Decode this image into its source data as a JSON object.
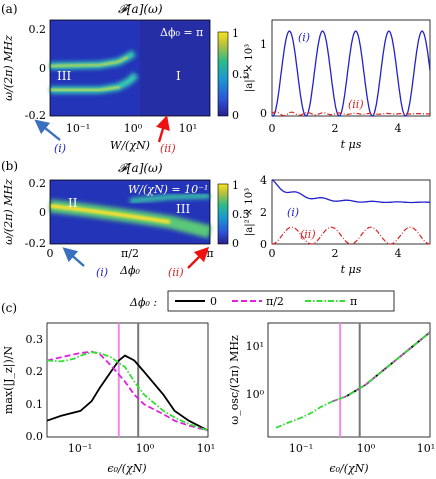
{
  "labels": {
    "a": "(a)",
    "b": "(b)",
    "c": "(c)",
    "transform": "𝓕[a](ω)",
    "dphi_a": "Δϕ₀ = π",
    "w_b": "W/(χN) = 10⁻¹",
    "reg_a_left": "III",
    "reg_a_right": "I",
    "reg_b_left": "II",
    "reg_b_right": "III",
    "ylabel_map": "ω/(2π) MHz",
    "xlabel_a_map": "W/(χN)",
    "xlabel_b_map": "Δϕ₀",
    "ylabel_ts": "|a|² × 10³",
    "xlabel_ts": "t μs",
    "mark_i": "(i)",
    "mark_ii": "(ii)",
    "legend_title": "Δϕ₀ :",
    "ylabel_c1": "max(|J_z|)/N",
    "ylabel_c2": "ω_osc/(2π) MHz",
    "xlabel_c": "ϵ₀/(χN)"
  },
  "ticks": {
    "map_y": [
      "0.2",
      "0",
      "-0.2"
    ],
    "map_a_x": [
      "10⁻¹",
      "10⁰",
      "10¹"
    ],
    "map_b_x": [
      "0",
      "π/2",
      "π"
    ],
    "cbar": [
      "1",
      "0.5",
      "0"
    ],
    "ts_a_y": [
      "0",
      "1"
    ],
    "ts_b_y": [
      "0",
      "2",
      "4"
    ],
    "ts_x": [
      "0",
      "2",
      "4"
    ],
    "c1_y": [
      "0.0",
      "0.1",
      "0.2",
      "0.3"
    ],
    "c2_y": [
      "10⁰",
      "10¹"
    ],
    "c_x": [
      "10⁻¹",
      "10⁰",
      "10¹"
    ]
  },
  "colors": {
    "blue": "#2222cc",
    "red": "#dd2222",
    "black": "#000000",
    "magenta": "#e020e0",
    "green": "#33dd33",
    "violet": "#ee88ee",
    "gray": "#777777"
  },
  "chart_data": [
    {
      "id": "a-left",
      "type": "heatmap",
      "title": "𝓕[a](ω)",
      "xlabel": "W/(χN)",
      "ylabel": "ω/(2π) MHz",
      "x_scale": "log",
      "xlim": [
        0.03,
        10
      ],
      "ylim": [
        -0.2,
        0.2
      ],
      "colorbar": {
        "ticks": [
          0,
          0.5,
          1
        ]
      },
      "upper_band": [
        [
          0.03,
          0.05
        ],
        [
          0.3,
          0.05
        ],
        [
          0.6,
          0.06
        ],
        [
          1.0,
          0.07
        ]
      ],
      "lower_band": [
        [
          0.03,
          -0.09
        ],
        [
          0.3,
          -0.09
        ],
        [
          0.6,
          -0.07
        ],
        [
          1.0,
          -0.04
        ]
      ]
    },
    {
      "id": "a-right",
      "type": "line",
      "xlabel": "t μs",
      "ylabel": "|a|² × 10³",
      "xlim": [
        0,
        5
      ],
      "ylim": [
        0,
        1.3
      ],
      "series": [
        {
          "name": "(i)",
          "style": "solid",
          "period": 1.05,
          "amplitude": 1.15,
          "phase_peak": 0.55
        },
        {
          "name": "(ii)",
          "style": "dashdot",
          "value_range": [
            0,
            0.06
          ]
        }
      ]
    },
    {
      "id": "b-left",
      "type": "heatmap",
      "title": "𝓕[a](ω)",
      "xlabel": "Δϕ₀",
      "ylabel": "ω/(2π) MHz",
      "xlim": [
        0,
        3.1416
      ],
      "ylim": [
        -0.2,
        0.2
      ],
      "main_band": [
        [
          0,
          0.0
        ],
        [
          0.8,
          -0.03
        ],
        [
          1.6,
          -0.06
        ],
        [
          2.4,
          -0.1
        ],
        [
          3.14,
          -0.16
        ]
      ],
      "upper_band": [
        [
          1.6,
          0.06
        ],
        [
          2.4,
          0.08
        ],
        [
          3.14,
          0.08
        ]
      ]
    },
    {
      "id": "b-right",
      "type": "line",
      "xlabel": "t μs",
      "ylabel": "|a|² × 10³",
      "xlim": [
        0,
        5
      ],
      "ylim": [
        0,
        4
      ],
      "series": [
        {
          "name": "(i)",
          "style": "solid",
          "start": 3.85,
          "end": 2.6
        },
        {
          "name": "(ii)",
          "style": "dashdot",
          "period": 1.25,
          "amplitude": 1.05
        }
      ]
    },
    {
      "id": "c-left",
      "type": "line",
      "xlabel": "ϵ₀/(χN)",
      "ylabel": "max(|J_z|)/N",
      "x_scale": "log",
      "xlim": [
        0.03,
        10
      ],
      "ylim": [
        0,
        0.35
      ],
      "vlines": [
        0.25,
        0.5
      ],
      "series": [
        {
          "name": "0",
          "style": "solid",
          "points": [
            [
              0.03,
              0.05
            ],
            [
              0.05,
              0.065
            ],
            [
              0.1,
              0.08
            ],
            [
              0.15,
              0.11
            ],
            [
              0.2,
              0.15
            ],
            [
              0.3,
              0.2
            ],
            [
              0.4,
              0.235
            ],
            [
              0.5,
              0.25
            ],
            [
              0.7,
              0.235
            ],
            [
              1,
              0.2
            ],
            [
              2,
              0.13
            ],
            [
              3,
              0.08
            ],
            [
              5,
              0.05
            ],
            [
              10,
              0.02
            ]
          ]
        },
        {
          "name": "π/2",
          "style": "dashed",
          "points": [
            [
              0.03,
              0.235
            ],
            [
              0.05,
              0.245
            ],
            [
              0.1,
              0.258
            ],
            [
              0.15,
              0.262
            ],
            [
              0.2,
              0.255
            ],
            [
              0.3,
              0.22
            ],
            [
              0.5,
              0.17
            ],
            [
              0.7,
              0.13
            ],
            [
              1,
              0.1
            ],
            [
              2,
              0.07
            ],
            [
              3,
              0.05
            ],
            [
              5,
              0.035
            ],
            [
              10,
              0.02
            ]
          ]
        },
        {
          "name": "π",
          "style": "dashdot",
          "points": [
            [
              0.03,
              0.235
            ],
            [
              0.05,
              0.232
            ],
            [
              0.08,
              0.24
            ],
            [
              0.1,
              0.25
            ],
            [
              0.15,
              0.26
            ],
            [
              0.2,
              0.258
            ],
            [
              0.3,
              0.245
            ],
            [
              0.5,
              0.215
            ],
            [
              0.7,
              0.17
            ],
            [
              1,
              0.13
            ],
            [
              2,
              0.08
            ],
            [
              3,
              0.06
            ],
            [
              5,
              0.04
            ],
            [
              10,
              0.02
            ]
          ]
        }
      ]
    },
    {
      "id": "c-right",
      "type": "line",
      "xlabel": "ϵ₀/(χN)",
      "ylabel": "ω_osc/(2π) MHz",
      "x_scale": "log",
      "y_scale": "log",
      "xlim": [
        0.03,
        10
      ],
      "ylim": [
        0.2,
        30
      ],
      "vlines": [
        0.25,
        0.5
      ],
      "series": [
        {
          "name": "0",
          "style": "solid",
          "points": [
            [
              0.5,
              1.2
            ],
            [
              1,
              2.0
            ],
            [
              2,
              4.0
            ],
            [
              5,
              10
            ],
            [
              10,
              20
            ]
          ]
        },
        {
          "name": "π/2",
          "style": "dashed",
          "points": [
            [
              0.3,
              0.95
            ],
            [
              0.5,
              1.2
            ],
            [
              1,
              2.0
            ],
            [
              2,
              4.0
            ],
            [
              5,
              10
            ],
            [
              10,
              20
            ]
          ]
        },
        {
          "name": "π",
          "style": "dashdot",
          "points": [
            [
              0.04,
              0.3
            ],
            [
              0.06,
              0.37
            ],
            [
              0.1,
              0.47
            ],
            [
              0.15,
              0.6
            ],
            [
              0.2,
              0.75
            ],
            [
              0.3,
              0.95
            ],
            [
              0.5,
              1.2
            ],
            [
              1,
              2.0
            ],
            [
              2,
              4.0
            ],
            [
              5,
              10
            ],
            [
              10,
              20
            ]
          ]
        }
      ]
    }
  ]
}
